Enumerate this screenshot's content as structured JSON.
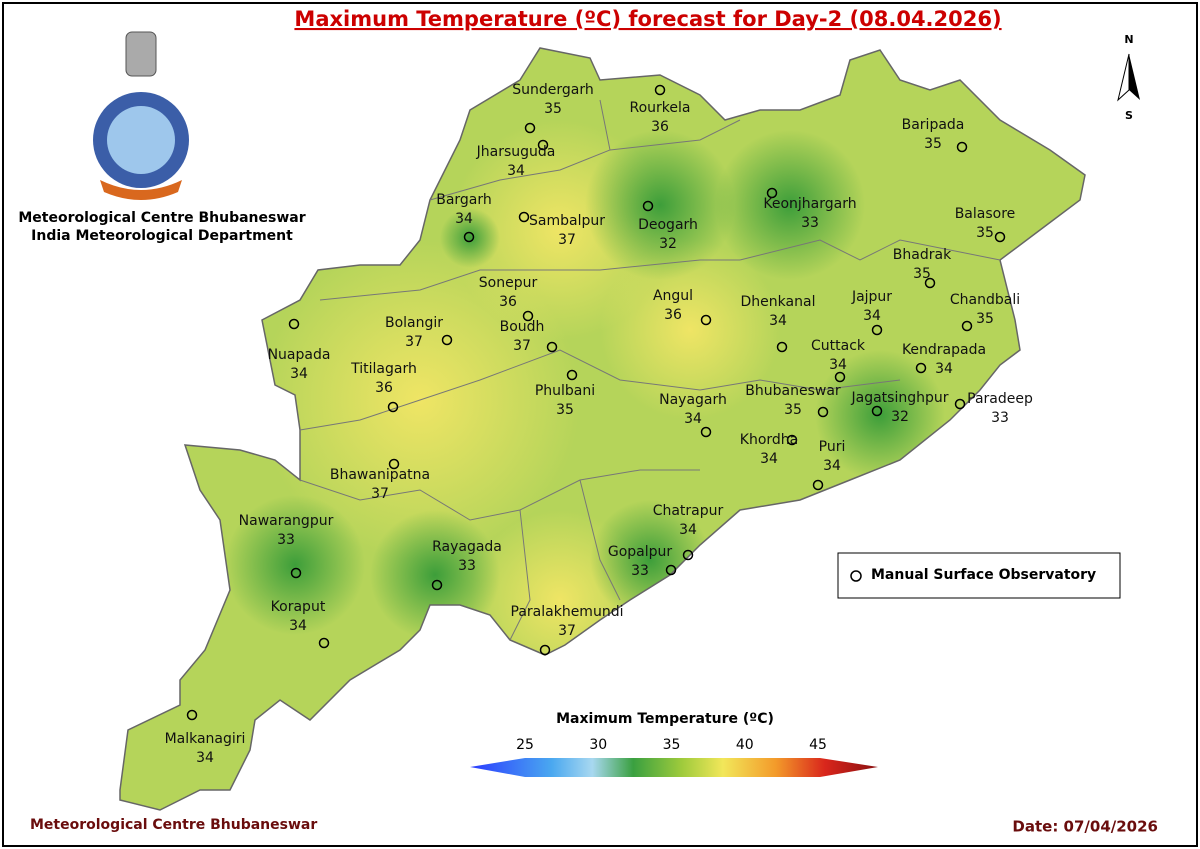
{
  "header": {
    "title": "Maximum Temperature (ºC) forecast for Day-2 (08.04.2026)"
  },
  "organization": [
    "Meteorological Centre Bhubaneswar",
    "India Meteorological Department"
  ],
  "compass": {
    "north": "N",
    "south": "S"
  },
  "stations": [
    {
      "name": "Sundergarh",
      "value": 35
    },
    {
      "name": "Rourkela",
      "value": 36
    },
    {
      "name": "Jharsuguda",
      "value": 34
    },
    {
      "name": "Bargarh",
      "value": 34
    },
    {
      "name": "Sambalpur",
      "value": 37
    },
    {
      "name": "Deogarh",
      "value": 32
    },
    {
      "name": "Keonjhargarh",
      "value": 33
    },
    {
      "name": "Baripada",
      "value": 35
    },
    {
      "name": "Balasore",
      "value": 35
    },
    {
      "name": "Bhadrak",
      "value": 35
    },
    {
      "name": "Chandbali",
      "value": 35
    },
    {
      "name": "Jajpur",
      "value": 34
    },
    {
      "name": "Dhenkanal",
      "value": 34
    },
    {
      "name": "Angul",
      "value": 36
    },
    {
      "name": "Sonepur",
      "value": 36
    },
    {
      "name": "Bolangir",
      "value": 37
    },
    {
      "name": "Boudh",
      "value": 37
    },
    {
      "name": "Nuapada",
      "value": 34
    },
    {
      "name": "Titilagarh",
      "value": 36
    },
    {
      "name": "Cuttack",
      "value": 34
    },
    {
      "name": "Kendrapada",
      "value": 34
    },
    {
      "name": "Phulbani",
      "value": 35
    },
    {
      "name": "Nayagarh",
      "value": 34
    },
    {
      "name": "Bhubaneswar",
      "value": 35
    },
    {
      "name": "Jagatsinghpur",
      "value": 32
    },
    {
      "name": "Paradeep",
      "value": 33
    },
    {
      "name": "Khordha",
      "value": 34
    },
    {
      "name": "Puri",
      "value": 34
    },
    {
      "name": "Bhawanipatna",
      "value": 37
    },
    {
      "name": "Chatrapur",
      "value": 34
    },
    {
      "name": "Nawarangpur",
      "value": 33
    },
    {
      "name": "Rayagada",
      "value": 33
    },
    {
      "name": "Gopalpur",
      "value": 33
    },
    {
      "name": "Paralakhemundi",
      "value": 37
    },
    {
      "name": "Koraput",
      "value": 34
    },
    {
      "name": "Malkanagiri",
      "value": 34
    }
  ],
  "legend": {
    "label": "Manual Surface Observatory"
  },
  "colorbar": {
    "title": "Maximum Temperature (ºC)",
    "ticks": [
      25,
      30,
      35,
      40,
      45
    ]
  },
  "footer": {
    "left": "Meteorological Centre Bhubaneswar",
    "date": "Date: 07/04/2026"
  }
}
